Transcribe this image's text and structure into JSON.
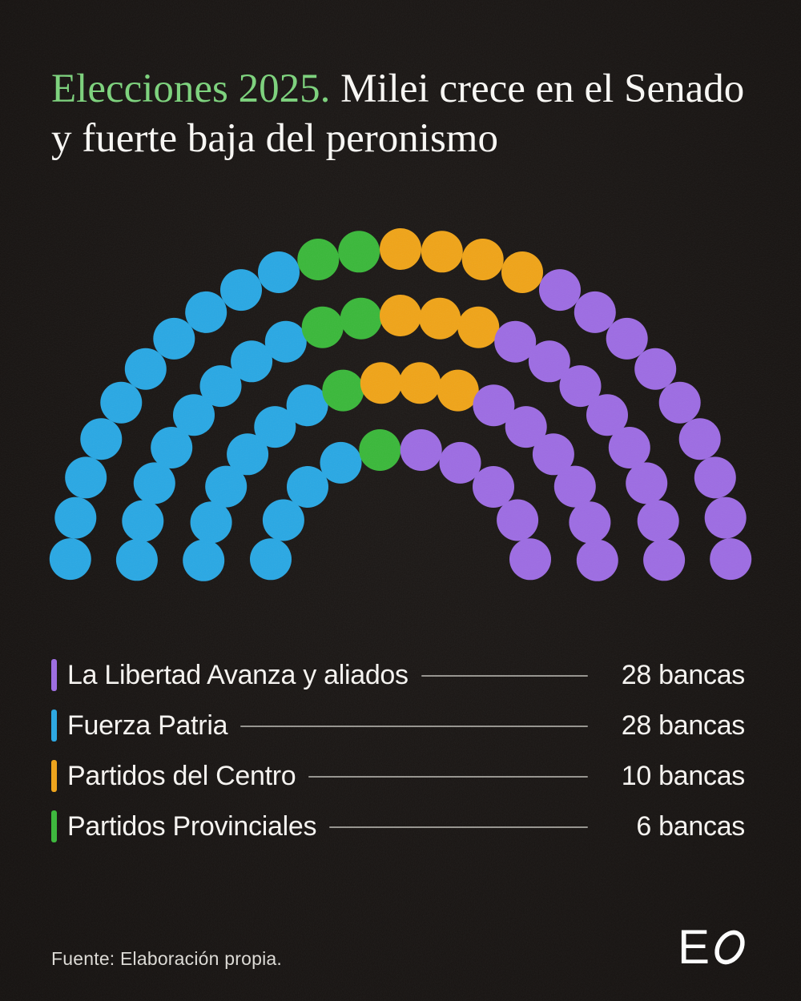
{
  "title": {
    "highlight": "Elecciones 2025.",
    "rest": " Milei crece en el Senado y fuerte baja del peronismo"
  },
  "colors": {
    "background": "#171311",
    "title_highlight": "#7cd37c",
    "text": "#f7f5f2",
    "legend_rule": "#96948f"
  },
  "chart_data": {
    "type": "parliament",
    "title": "Elecciones 2025. Milei crece en el Senado y fuerte baja del peronismo",
    "total_seats": 72,
    "unit_label": "bancas",
    "legend_position": "bottom",
    "parties": [
      {
        "id": "lla",
        "label": "La Libertad Avanza y aliados",
        "seats": 28,
        "seats_label": "28 bancas",
        "color": "#9d6ce3"
      },
      {
        "id": "fp",
        "label": "Fuerza Patria",
        "seats": 28,
        "seats_label": "28 bancas",
        "color": "#29a8e4"
      },
      {
        "id": "pc",
        "label": "Partidos del Centro",
        "seats": 10,
        "seats_label": "10 bancas",
        "color": "#f0a418"
      },
      {
        "id": "pp",
        "label": "Partidos Provinciales",
        "seats": 6,
        "seats_label": "6 bancas",
        "color": "#3ab83a"
      }
    ],
    "seat_order_left_to_right": [
      "fp",
      "pp",
      "pc",
      "lla"
    ],
    "rows_inner_to_outer": [
      [
        {
          "party": "fp",
          "count": 4
        },
        {
          "party": "pp",
          "count": 1
        },
        {
          "party": "lla",
          "count": 5
        }
      ],
      [
        {
          "party": "fp",
          "count": 6
        },
        {
          "party": "pp",
          "count": 1
        },
        {
          "party": "pc",
          "count": 3
        },
        {
          "party": "lla",
          "count": 6
        }
      ],
      [
        {
          "party": "fp",
          "count": 8
        },
        {
          "party": "pp",
          "count": 2
        },
        {
          "party": "pc",
          "count": 3
        },
        {
          "party": "lla",
          "count": 8
        }
      ],
      [
        {
          "party": "fp",
          "count": 10
        },
        {
          "party": "pp",
          "count": 2
        },
        {
          "party": "pc",
          "count": 4
        },
        {
          "party": "lla",
          "count": 9
        }
      ]
    ]
  },
  "footer": {
    "source": "Fuente: Elaboración propia.",
    "logo": {
      "letter_e": "E",
      "letter_o": "O"
    }
  }
}
